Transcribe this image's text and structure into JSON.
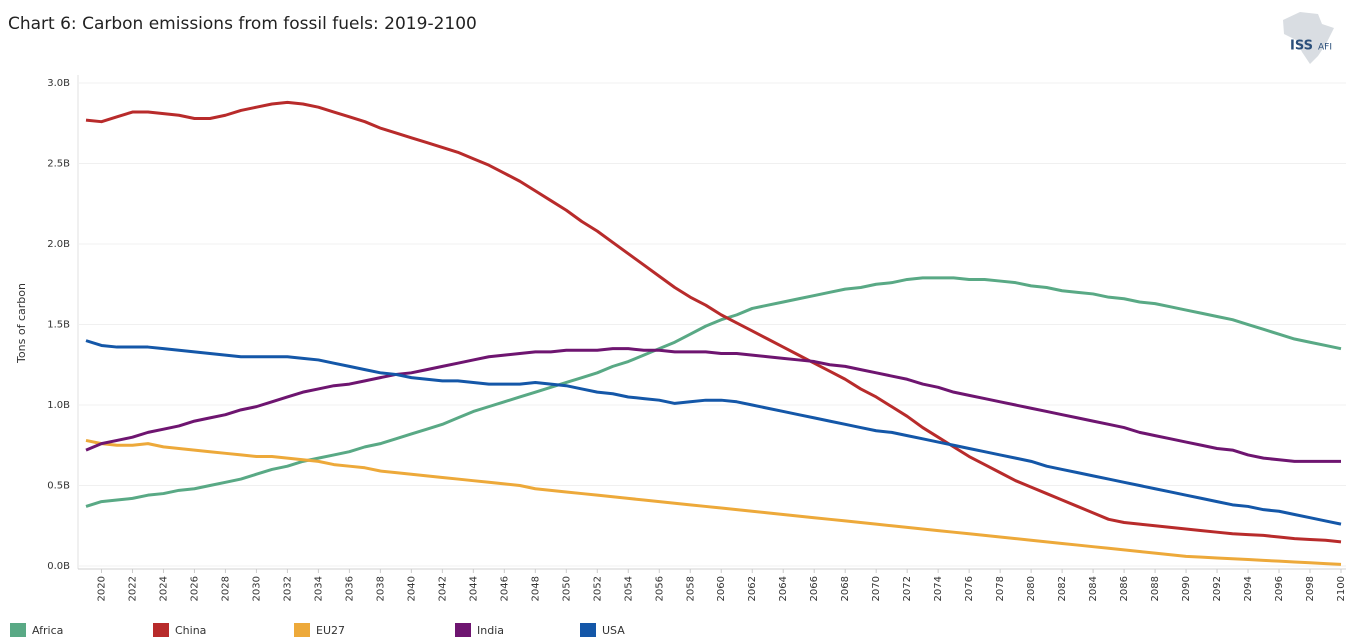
{
  "chart_data": {
    "type": "line",
    "title": "Chart 6: Carbon emissions from fossil fuels: 2019-2100",
    "ylabel": "Tons of carbon",
    "logo": {
      "left": "ISS",
      "right": "AFI"
    },
    "x": [
      2019,
      2020,
      2021,
      2022,
      2023,
      2024,
      2025,
      2026,
      2027,
      2028,
      2029,
      2030,
      2031,
      2032,
      2033,
      2034,
      2035,
      2036,
      2037,
      2038,
      2039,
      2040,
      2041,
      2042,
      2043,
      2044,
      2045,
      2046,
      2047,
      2048,
      2049,
      2050,
      2051,
      2052,
      2053,
      2054,
      2055,
      2056,
      2057,
      2058,
      2059,
      2060,
      2061,
      2062,
      2063,
      2064,
      2065,
      2066,
      2067,
      2068,
      2069,
      2070,
      2071,
      2072,
      2073,
      2074,
      2075,
      2076,
      2077,
      2078,
      2079,
      2080,
      2081,
      2082,
      2083,
      2084,
      2085,
      2086,
      2087,
      2088,
      2089,
      2090,
      2091,
      2092,
      2093,
      2094,
      2095,
      2096,
      2097,
      2098,
      2099,
      2100
    ],
    "xlim": [
      2019,
      2100
    ],
    "xticks": [
      2020,
      2022,
      2024,
      2026,
      2028,
      2030,
      2032,
      2034,
      2036,
      2038,
      2040,
      2042,
      2044,
      2046,
      2048,
      2050,
      2052,
      2054,
      2056,
      2058,
      2060,
      2062,
      2064,
      2066,
      2068,
      2070,
      2072,
      2074,
      2076,
      2078,
      2080,
      2082,
      2084,
      2086,
      2088,
      2090,
      2092,
      2094,
      2096,
      2098,
      2100
    ],
    "ylim": [
      0,
      3.05
    ],
    "yticks": [
      {
        "value": 0,
        "label": "0.0B"
      },
      {
        "value": 0.5,
        "label": "0.5B"
      },
      {
        "value": 1,
        "label": "1.0B"
      },
      {
        "value": 1.5,
        "label": "1.5B"
      },
      {
        "value": 2,
        "label": "2.0B"
      },
      {
        "value": 2.5,
        "label": "2.5B"
      },
      {
        "value": 3,
        "label": "3.0B"
      }
    ],
    "grid": true,
    "legend": "bottom",
    "series": [
      {
        "name": "Africa",
        "color": "#59a985",
        "values": [
          0.37,
          0.4,
          0.41,
          0.42,
          0.44,
          0.45,
          0.47,
          0.48,
          0.5,
          0.52,
          0.54,
          0.57,
          0.6,
          0.62,
          0.65,
          0.67,
          0.69,
          0.71,
          0.74,
          0.76,
          0.79,
          0.82,
          0.85,
          0.88,
          0.92,
          0.96,
          0.99,
          1.02,
          1.05,
          1.08,
          1.11,
          1.14,
          1.17,
          1.2,
          1.24,
          1.27,
          1.31,
          1.35,
          1.39,
          1.44,
          1.49,
          1.53,
          1.56,
          1.6,
          1.62,
          1.64,
          1.66,
          1.68,
          1.7,
          1.72,
          1.73,
          1.75,
          1.76,
          1.78,
          1.79,
          1.79,
          1.79,
          1.78,
          1.78,
          1.77,
          1.76,
          1.74,
          1.73,
          1.71,
          1.7,
          1.69,
          1.67,
          1.66,
          1.64,
          1.63,
          1.61,
          1.59,
          1.57,
          1.55,
          1.53,
          1.5,
          1.47,
          1.44,
          1.41,
          1.39,
          1.37,
          1.35
        ]
      },
      {
        "name": "China",
        "color": "#b82b2b",
        "values": [
          2.77,
          2.76,
          2.79,
          2.82,
          2.82,
          2.81,
          2.8,
          2.78,
          2.78,
          2.8,
          2.83,
          2.85,
          2.87,
          2.88,
          2.87,
          2.85,
          2.82,
          2.79,
          2.76,
          2.72,
          2.69,
          2.66,
          2.63,
          2.6,
          2.57,
          2.53,
          2.49,
          2.44,
          2.39,
          2.33,
          2.27,
          2.21,
          2.14,
          2.08,
          2.01,
          1.94,
          1.87,
          1.8,
          1.73,
          1.67,
          1.62,
          1.56,
          1.51,
          1.46,
          1.41,
          1.36,
          1.31,
          1.26,
          1.21,
          1.16,
          1.1,
          1.05,
          0.99,
          0.93,
          0.86,
          0.8,
          0.74,
          0.68,
          0.63,
          0.58,
          0.53,
          0.49,
          0.45,
          0.41,
          0.37,
          0.33,
          0.29,
          0.27,
          0.26,
          0.25,
          0.24,
          0.23,
          0.22,
          0.21,
          0.2,
          0.195,
          0.19,
          0.18,
          0.17,
          0.165,
          0.16,
          0.15
        ]
      },
      {
        "name": "EU27",
        "color": "#eda93a",
        "values": [
          0.78,
          0.76,
          0.75,
          0.75,
          0.76,
          0.74,
          0.73,
          0.72,
          0.71,
          0.7,
          0.69,
          0.68,
          0.68,
          0.67,
          0.66,
          0.65,
          0.63,
          0.62,
          0.61,
          0.59,
          0.58,
          0.57,
          0.56,
          0.55,
          0.54,
          0.53,
          0.52,
          0.51,
          0.5,
          0.48,
          0.47,
          0.46,
          0.45,
          0.44,
          0.43,
          0.42,
          0.41,
          0.4,
          0.39,
          0.38,
          0.37,
          0.36,
          0.35,
          0.34,
          0.33,
          0.32,
          0.31,
          0.3,
          0.29,
          0.28,
          0.27,
          0.26,
          0.25,
          0.24,
          0.23,
          0.22,
          0.21,
          0.2,
          0.19,
          0.18,
          0.17,
          0.16,
          0.15,
          0.14,
          0.13,
          0.12,
          0.11,
          0.1,
          0.09,
          0.08,
          0.07,
          0.06,
          0.055,
          0.05,
          0.045,
          0.04,
          0.035,
          0.03,
          0.025,
          0.02,
          0.015,
          0.01
        ]
      },
      {
        "name": "India",
        "color": "#6e1570",
        "values": [
          0.72,
          0.76,
          0.78,
          0.8,
          0.83,
          0.85,
          0.87,
          0.9,
          0.92,
          0.94,
          0.97,
          0.99,
          1.02,
          1.05,
          1.08,
          1.1,
          1.12,
          1.13,
          1.15,
          1.17,
          1.19,
          1.2,
          1.22,
          1.24,
          1.26,
          1.28,
          1.3,
          1.31,
          1.32,
          1.33,
          1.33,
          1.34,
          1.34,
          1.34,
          1.35,
          1.35,
          1.34,
          1.34,
          1.33,
          1.33,
          1.33,
          1.32,
          1.32,
          1.31,
          1.3,
          1.29,
          1.28,
          1.27,
          1.25,
          1.24,
          1.22,
          1.2,
          1.18,
          1.16,
          1.13,
          1.11,
          1.08,
          1.06,
          1.04,
          1.02,
          1.0,
          0.98,
          0.96,
          0.94,
          0.92,
          0.9,
          0.88,
          0.86,
          0.83,
          0.81,
          0.79,
          0.77,
          0.75,
          0.73,
          0.72,
          0.69,
          0.67,
          0.66,
          0.65,
          0.65,
          0.65,
          0.65
        ]
      },
      {
        "name": "USA",
        "color": "#1457a8",
        "values": [
          1.4,
          1.37,
          1.36,
          1.36,
          1.36,
          1.35,
          1.34,
          1.33,
          1.32,
          1.31,
          1.3,
          1.3,
          1.3,
          1.3,
          1.29,
          1.28,
          1.26,
          1.24,
          1.22,
          1.2,
          1.19,
          1.17,
          1.16,
          1.15,
          1.15,
          1.14,
          1.13,
          1.13,
          1.13,
          1.14,
          1.13,
          1.12,
          1.1,
          1.08,
          1.07,
          1.05,
          1.04,
          1.03,
          1.01,
          1.02,
          1.03,
          1.03,
          1.02,
          1.0,
          0.98,
          0.96,
          0.94,
          0.92,
          0.9,
          0.88,
          0.86,
          0.84,
          0.83,
          0.81,
          0.79,
          0.77,
          0.75,
          0.73,
          0.71,
          0.69,
          0.67,
          0.65,
          0.62,
          0.6,
          0.58,
          0.56,
          0.54,
          0.52,
          0.5,
          0.48,
          0.46,
          0.44,
          0.42,
          0.4,
          0.38,
          0.37,
          0.35,
          0.34,
          0.32,
          0.3,
          0.28,
          0.26
        ]
      }
    ]
  }
}
